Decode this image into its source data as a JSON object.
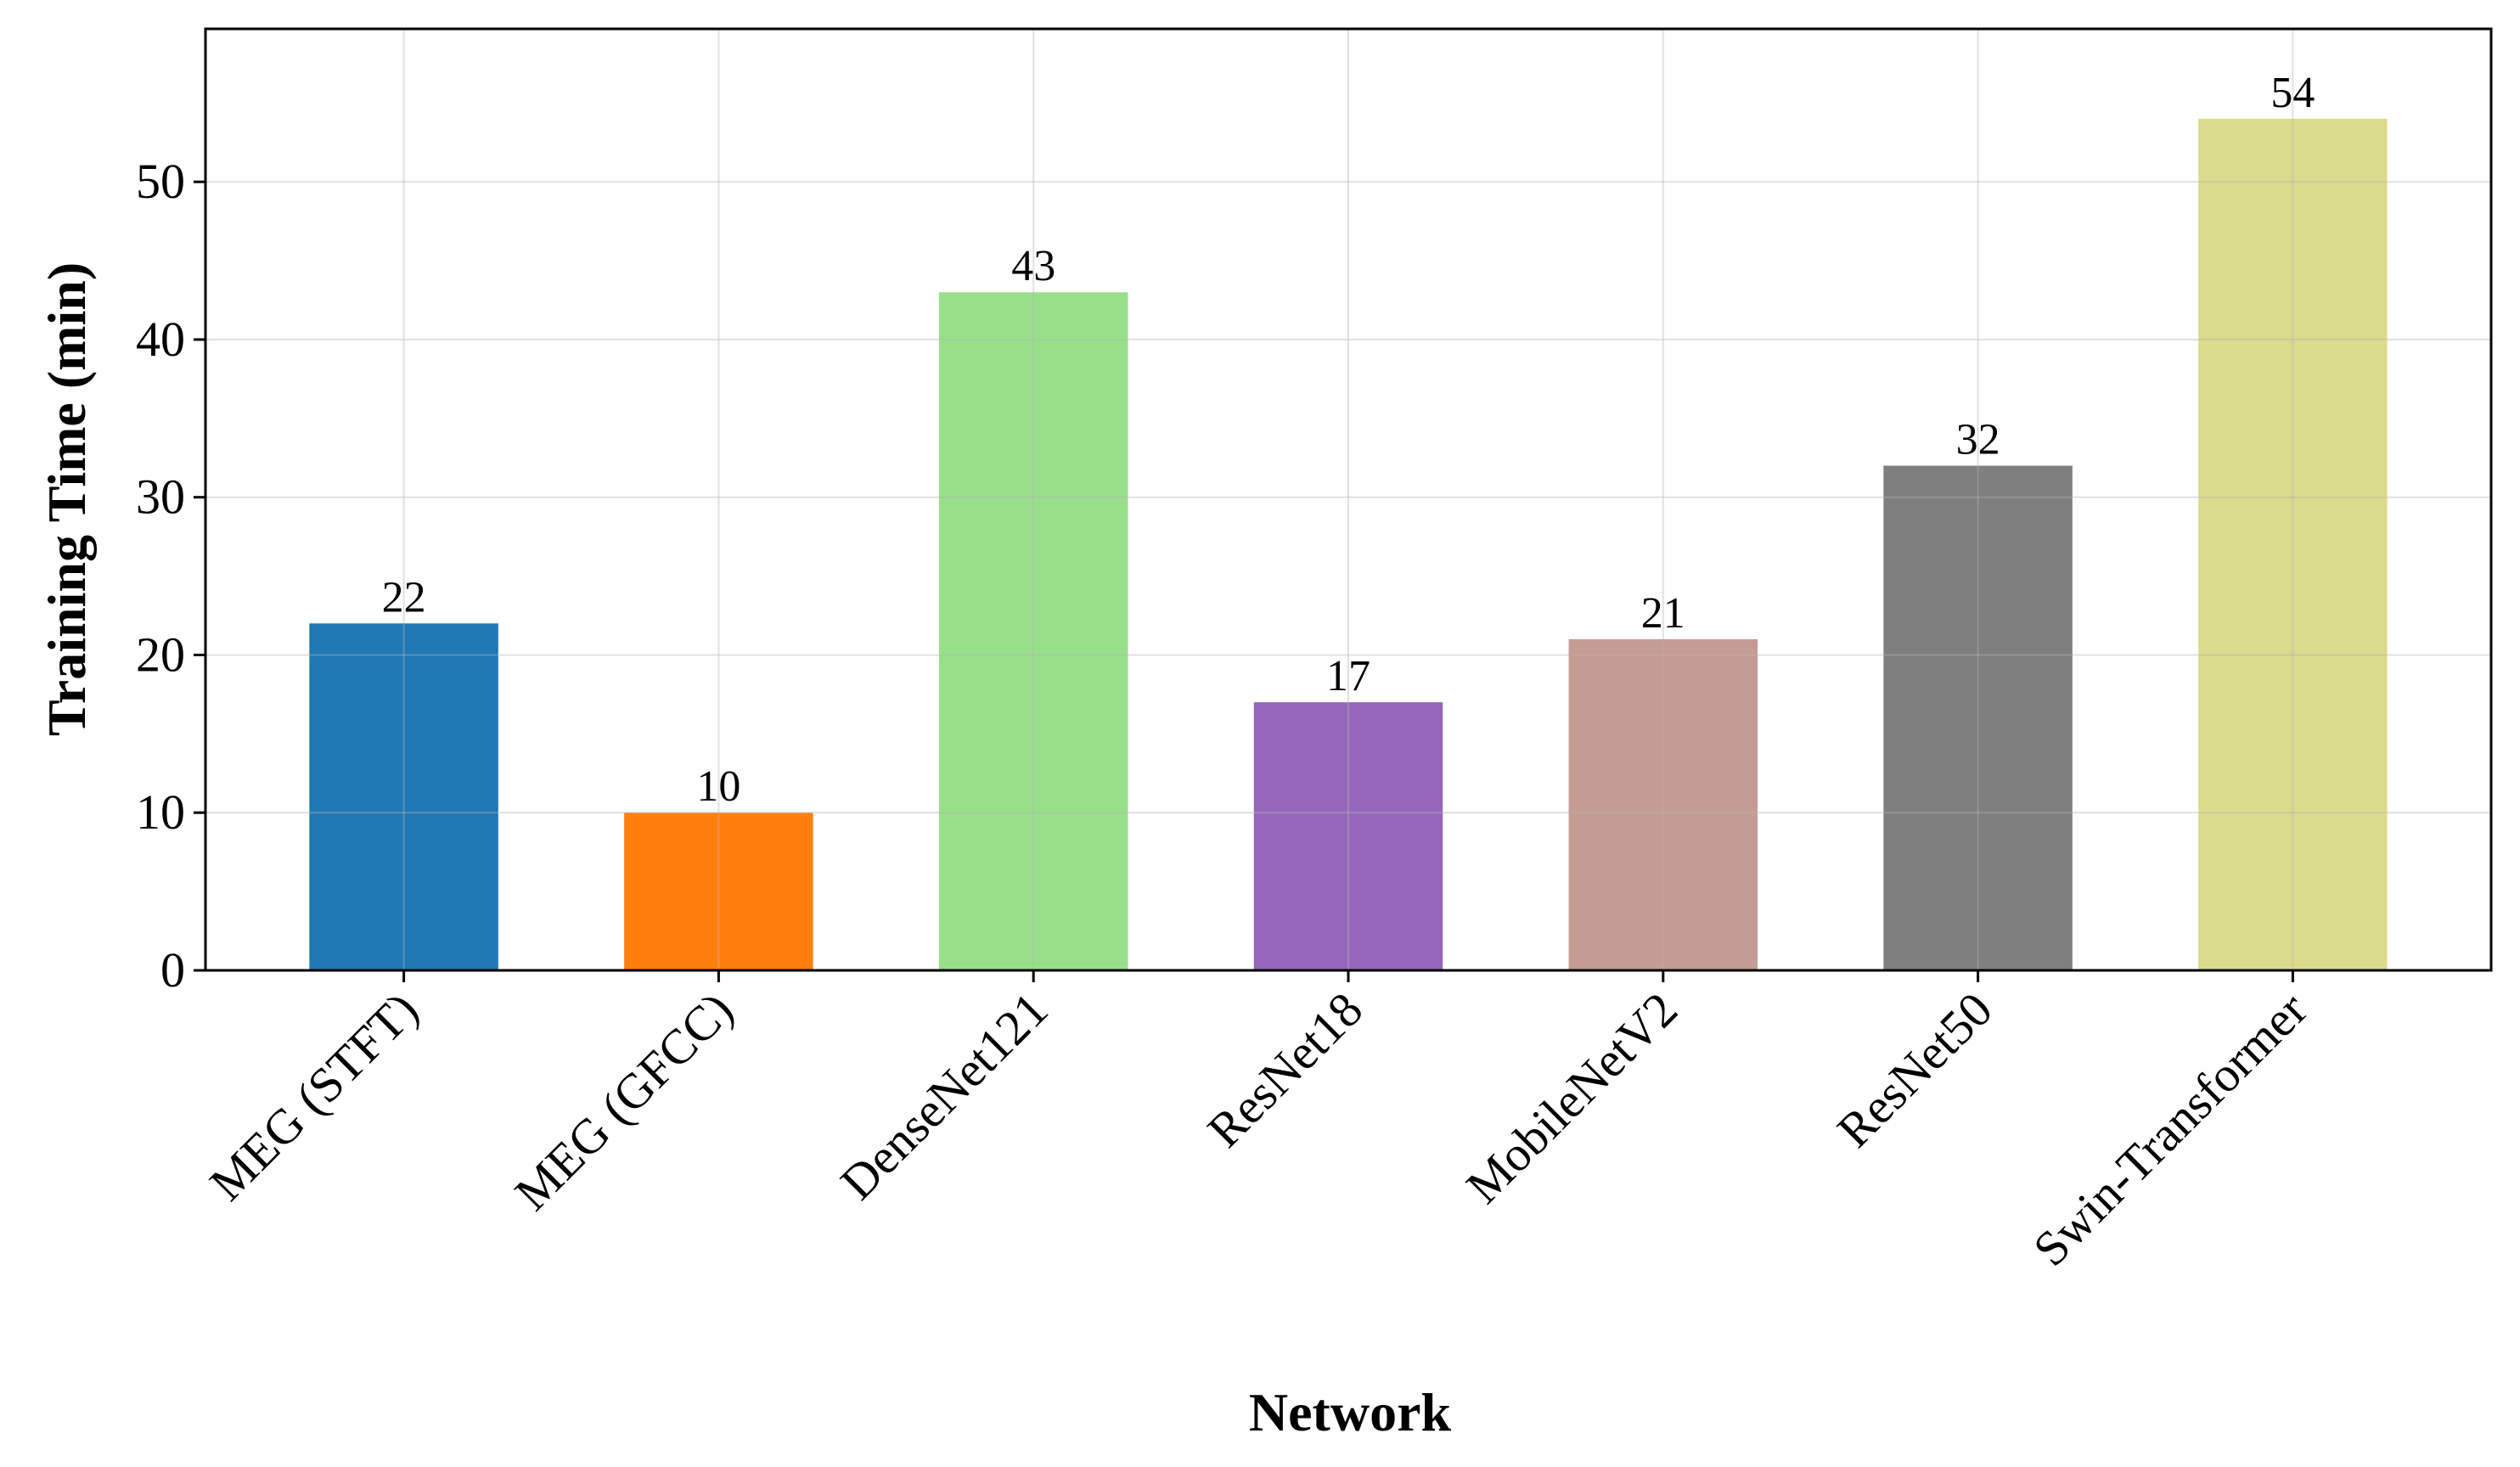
{
  "chart_data": {
    "type": "bar",
    "xlabel": "Network",
    "ylabel": "Training Time (min)",
    "categories": [
      "MEG (STFT)",
      "MEG (GFCC)",
      "DenseNet121",
      "ResNet18",
      "MobileNetV2",
      "ResNet50",
      "Swin-Transformer"
    ],
    "values": [
      22,
      10,
      43,
      17,
      21,
      32,
      54
    ],
    "colors": [
      "#1f77b4",
      "#ff7f0e",
      "#98df8a",
      "#9467bd",
      "#c49c94",
      "#7f7f7f",
      "#dbdb8d"
    ],
    "ylim": [
      0,
      59.7
    ],
    "yticks": [
      0,
      10,
      20,
      30,
      40,
      50
    ],
    "grid": true
  }
}
